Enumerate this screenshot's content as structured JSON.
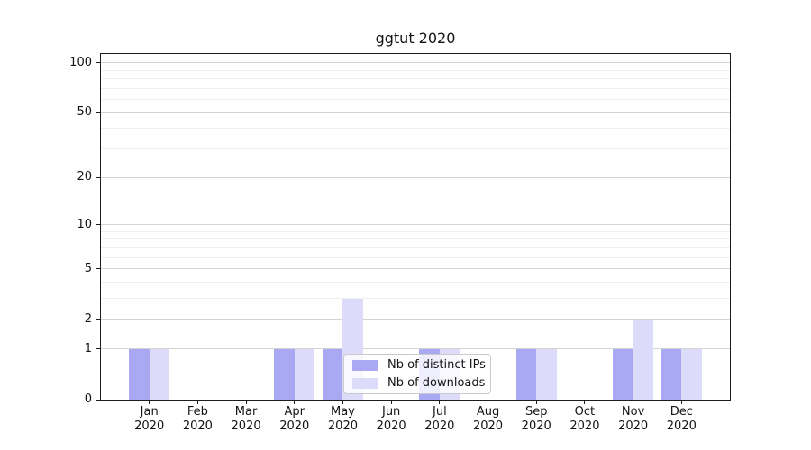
{
  "title": "ggtut 2020",
  "colors": {
    "distinct_ips": "#a9a9f3",
    "downloads": "#dcdcfa",
    "grid_major": "#d3d3d3",
    "grid_minor": "#f0f0f0",
    "spine": "#1c1c1c"
  },
  "legend": {
    "items": [
      {
        "label": "Nb of distinct IPs",
        "color": "#a9a9f3"
      },
      {
        "label": "Nb of downloads",
        "color": "#dcdcfa"
      }
    ]
  },
  "chart_data": {
    "type": "bar",
    "title": "ggtut 2020",
    "categories": [
      "Jan 2020",
      "Feb 2020",
      "Mar 2020",
      "Apr 2020",
      "May 2020",
      "Jun 2020",
      "Jul 2020",
      "Aug 2020",
      "Sep 2020",
      "Oct 2020",
      "Nov 2020",
      "Dec 2020"
    ],
    "series": [
      {
        "name": "Nb of distinct IPs",
        "color": "#a9a9f3",
        "values": [
          1,
          0,
          0,
          1,
          1,
          0,
          1,
          0,
          1,
          0,
          1,
          1
        ]
      },
      {
        "name": "Nb of downloads",
        "color": "#dcdcfa",
        "values": [
          1,
          0,
          0,
          1,
          3,
          0,
          1,
          0,
          1,
          0,
          2,
          1
        ]
      }
    ],
    "xlabel": "",
    "ylabel": "",
    "yscale": "log1p",
    "ylim": [
      0,
      113
    ],
    "y_ticks": [
      0,
      1,
      2,
      5,
      10,
      20,
      50,
      100
    ],
    "y_minor_ticks": [
      3,
      4,
      6,
      7,
      8,
      9,
      30,
      40,
      60,
      70,
      80,
      90
    ],
    "grid": "horizontal major and minor gridlines",
    "legend_position": "inside, lower center"
  }
}
